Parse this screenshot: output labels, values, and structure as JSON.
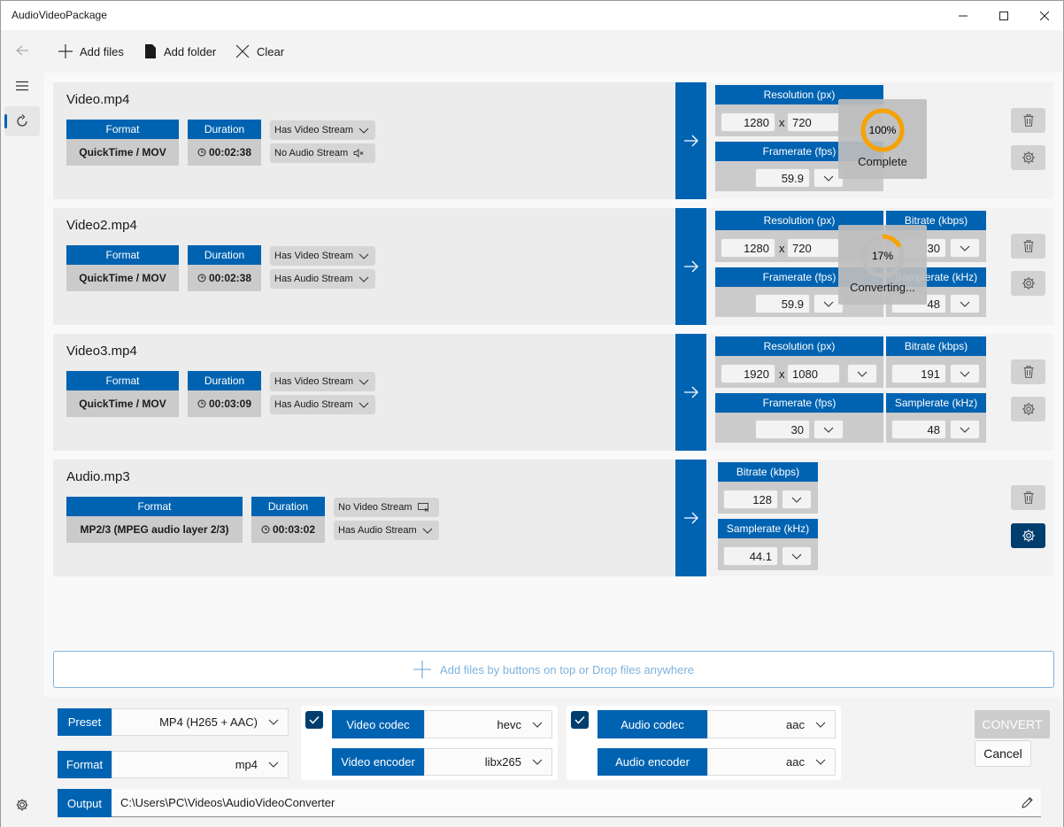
{
  "window": {
    "title": "AudioVideoPackage"
  },
  "toolbar": {
    "add_files": "Add files",
    "add_folder": "Add folder",
    "clear": "Clear"
  },
  "cards": [
    {
      "name": "Video.mp4",
      "format_label": "Format",
      "format": "QuickTime / MOV",
      "duration_label": "Duration",
      "duration": "00:02:38",
      "video_stream": "Has Video Stream",
      "audio_stream": "No Audio Stream",
      "resolution_label": "Resolution (px)",
      "res_w": "1280",
      "res_h": "720",
      "framerate_label": "Framerate (fps)",
      "framerate": "59.9",
      "progress": {
        "percent": "100%",
        "status": "Complete",
        "fraction": 1.0
      }
    },
    {
      "name": "Video2.mp4",
      "format_label": "Format",
      "format": "QuickTime / MOV",
      "duration_label": "Duration",
      "duration": "00:02:38",
      "video_stream": "Has Video Stream",
      "audio_stream": "Has Audio Stream",
      "resolution_label": "Resolution (px)",
      "res_w": "1280",
      "res_h": "720",
      "framerate_label": "Framerate (fps)",
      "framerate": "59.9",
      "bitrate_label": "Bitrate (kbps)",
      "bitrate": "30",
      "samplerate_label": "Samplerate (kHz)",
      "samplerate": "48",
      "progress": {
        "percent": "17%",
        "status": "Converting...",
        "fraction": 0.17
      }
    },
    {
      "name": "Video3.mp4",
      "format_label": "Format",
      "format": "QuickTime / MOV",
      "duration_label": "Duration",
      "duration": "00:03:09",
      "video_stream": "Has Video Stream",
      "audio_stream": "Has Audio Stream",
      "resolution_label": "Resolution (px)",
      "res_w": "1920",
      "res_h": "1080",
      "framerate_label": "Framerate (fps)",
      "framerate": "30",
      "bitrate_label": "Bitrate (kbps)",
      "bitrate": "191",
      "samplerate_label": "Samplerate (kHz)",
      "samplerate": "48"
    },
    {
      "name": "Audio.mp3",
      "format_label": "Format",
      "format": "MP2/3 (MPEG audio layer 2/3)",
      "duration_label": "Duration",
      "duration": "00:03:02",
      "video_stream": "No Video Stream",
      "audio_stream": "Has Audio Stream",
      "bitrate_label": "Bitrate (kbps)",
      "bitrate": "128",
      "samplerate_label": "Samplerate (kHz)",
      "samplerate": "44.1"
    }
  ],
  "res_sep": "x",
  "dropzone": {
    "text": "Add files by buttons on top or Drop files anywhere"
  },
  "settings": {
    "preset_label": "Preset",
    "preset": "MP4 (H265 + AAC)",
    "format_label": "Format",
    "format": "mp4",
    "video_codec_label": "Video codec",
    "video_codec": "hevc",
    "video_encoder_label": "Video encoder",
    "video_encoder": "libx265",
    "audio_codec_label": "Audio codec",
    "audio_codec": "aac",
    "audio_encoder_label": "Audio encoder",
    "audio_encoder": "aac",
    "output_label": "Output",
    "output_path": "C:\\Users\\PC\\Videos\\AudioVideoConverter",
    "convert": "CONVERT",
    "cancel": "Cancel",
    "video_enabled": true,
    "audio_enabled": true
  },
  "colors": {
    "accent": "#0063b1",
    "accent_dark": "#003e6e",
    "progress": "#f7a200"
  }
}
